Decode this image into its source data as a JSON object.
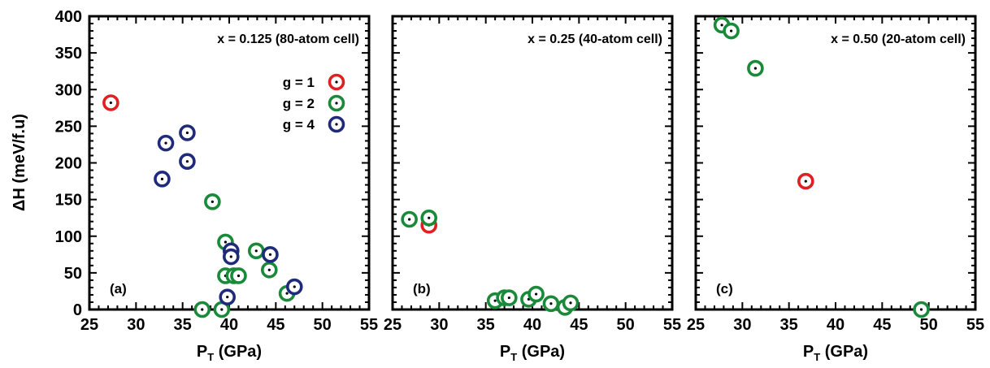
{
  "chart_data": [
    {
      "type": "scatter",
      "title": "x = 0.125 (80-atom cell)",
      "panel_label": "(a)",
      "xlabel": "P",
      "xlabel_sub": "T",
      "xlabel_unit": " (GPa)",
      "ylabel": "ΔH (meV/f.u)",
      "xlim": [
        25,
        55
      ],
      "ylim": [
        0,
        400
      ],
      "xticks": [
        25,
        30,
        35,
        40,
        45,
        50,
        55
      ],
      "yticks": [
        0,
        50,
        100,
        150,
        200,
        250,
        300,
        350,
        400
      ],
      "legend": "top-right",
      "series": [
        {
          "name": "g = 1",
          "color": "#e02020",
          "points": [
            [
              27.3,
              282
            ]
          ]
        },
        {
          "name": "g = 2",
          "color": "#1a8a3a",
          "points": [
            [
              38.2,
              147
            ],
            [
              39.6,
              92
            ],
            [
              39.6,
              46
            ],
            [
              40.5,
              46
            ],
            [
              41.0,
              46
            ],
            [
              42.9,
              80
            ],
            [
              44.3,
              54
            ],
            [
              37.1,
              0
            ],
            [
              39.2,
              0
            ],
            [
              46.2,
              22
            ]
          ]
        },
        {
          "name": "g = 4",
          "color": "#1f2a7a",
          "points": [
            [
              33.2,
              227
            ],
            [
              35.5,
              241
            ],
            [
              35.5,
              202
            ],
            [
              32.8,
              178
            ],
            [
              40.2,
              80
            ],
            [
              40.2,
              72
            ],
            [
              44.4,
              75
            ],
            [
              39.8,
              17
            ],
            [
              47.0,
              31
            ]
          ]
        }
      ]
    },
    {
      "type": "scatter",
      "title": "x = 0.25 (40-atom cell)",
      "panel_label": "(b)",
      "xlabel": "P",
      "xlabel_sub": "T",
      "xlabel_unit": " (GPa)",
      "xlim": [
        25,
        55
      ],
      "ylim": [
        0,
        400
      ],
      "xticks": [
        25,
        30,
        35,
        40,
        45,
        50,
        55
      ],
      "series": [
        {
          "name": "g = 1",
          "color": "#e02020",
          "points": [
            [
              28.9,
              115
            ]
          ]
        },
        {
          "name": "g = 2",
          "color": "#1a8a3a",
          "points": [
            [
              26.8,
              123
            ],
            [
              28.9,
              125
            ],
            [
              36.0,
              12
            ],
            [
              37.0,
              16
            ],
            [
              37.5,
              16
            ],
            [
              39.6,
              14
            ],
            [
              40.4,
              21
            ],
            [
              42.0,
              8
            ],
            [
              43.5,
              3
            ],
            [
              44.1,
              9
            ]
          ]
        }
      ]
    },
    {
      "type": "scatter",
      "title": "x = 0.50 (20-atom cell)",
      "panel_label": "(c)",
      "xlabel": "P",
      "xlabel_sub": "T",
      "xlabel_unit": " (GPa)",
      "xlim": [
        25,
        55
      ],
      "ylim": [
        0,
        400
      ],
      "xticks": [
        25,
        30,
        35,
        40,
        45,
        50,
        55
      ],
      "series": [
        {
          "name": "g = 1",
          "color": "#e02020",
          "points": [
            [
              36.8,
              175
            ]
          ]
        },
        {
          "name": "g = 2",
          "color": "#1a8a3a",
          "points": [
            [
              27.8,
              388
            ],
            [
              28.8,
              380
            ],
            [
              31.4,
              329
            ],
            [
              49.2,
              0
            ]
          ]
        }
      ]
    }
  ]
}
